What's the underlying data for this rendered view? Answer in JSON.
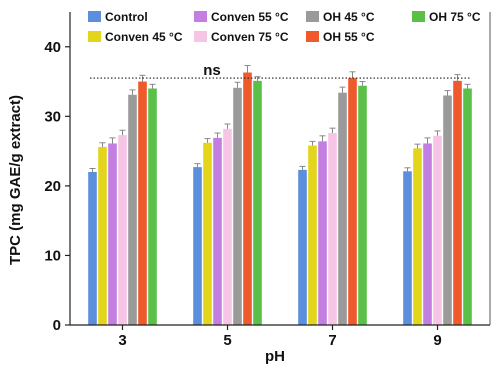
{
  "chart_data": {
    "type": "bar",
    "categories": [
      "3",
      "5",
      "7",
      "9"
    ],
    "xlabel": "pH",
    "ylabel": "TPC (mg GAE/g extract)",
    "ylim": [
      0,
      45
    ],
    "yticks": [
      "0",
      "10",
      "20",
      "30",
      "40"
    ],
    "grid": false,
    "legend_position": "top",
    "annotation": {
      "text": "ns",
      "y": 35.5
    },
    "series": [
      {
        "name": "Control",
        "color": "#5b8fde",
        "values": [
          22.0,
          22.7,
          22.3,
          22.1
        ],
        "errors": [
          0.5,
          0.5,
          0.5,
          0.5
        ]
      },
      {
        "name": "Conven 45 °C",
        "color": "#e3d41c",
        "values": [
          25.6,
          26.2,
          25.8,
          25.4
        ],
        "errors": [
          0.6,
          0.6,
          0.6,
          0.6
        ]
      },
      {
        "name": "Conven 55 °C",
        "color": "#c27ee0",
        "values": [
          26.1,
          26.9,
          26.4,
          26.1
        ],
        "errors": [
          0.8,
          0.7,
          0.8,
          0.8
        ]
      },
      {
        "name": "Conven 75 °C",
        "color": "#f6c4e4",
        "values": [
          27.3,
          28.2,
          27.6,
          27.2
        ],
        "errors": [
          0.7,
          0.7,
          0.7,
          0.7
        ]
      },
      {
        "name": "OH 45 °C",
        "color": "#9a9a9a",
        "values": [
          33.1,
          34.1,
          33.4,
          33.0
        ],
        "errors": [
          0.7,
          0.8,
          0.8,
          0.7
        ]
      },
      {
        "name": "OH 55 °C",
        "color": "#ee5a2c",
        "values": [
          35.0,
          36.3,
          35.5,
          35.1
        ],
        "errors": [
          0.9,
          1.0,
          0.9,
          0.9
        ]
      },
      {
        "name": "OH 75 °C",
        "color": "#5ac048",
        "values": [
          34.0,
          35.1,
          34.4,
          34.0
        ],
        "errors": [
          0.6,
          0.6,
          0.6,
          0.6
        ]
      }
    ]
  }
}
